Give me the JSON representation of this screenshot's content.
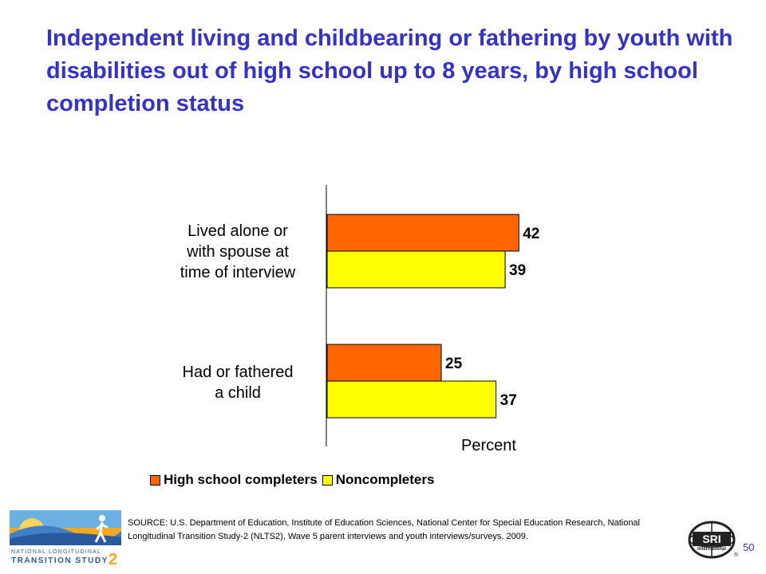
{
  "title": "Independent living and childbearing or fathering by youth with disabilities out of high school up to 8 years, by high school completion status",
  "chart_data": {
    "type": "bar",
    "orientation": "horizontal",
    "categories": [
      "Lived alone or with spouse at time of interview",
      "Had or fathered a child"
    ],
    "category_lines": [
      [
        "Lived alone or",
        "with spouse at",
        "time of interview"
      ],
      [
        "Had or fathered",
        "a child"
      ]
    ],
    "series": [
      {
        "name": "High school completers",
        "values": [
          42,
          25
        ],
        "color": "#ff6600"
      },
      {
        "name": "Noncompleters",
        "values": [
          39,
          37
        ],
        "color": "#ffff00"
      }
    ],
    "xlabel": "Percent",
    "xlim": [
      0,
      100
    ],
    "grid": false,
    "legend_position": "bottom"
  },
  "source": "SOURCE: U.S. Department of Education, Institute of Education Sciences, National Center for Special Education Research, National Longitudinal Transition Study-2 (NLTS2), Wave 5 parent interviews and youth interviews/surveys, 2009.",
  "logos": {
    "nlts_line1": "NATIONAL LONGITUDINAL",
    "nlts_line2": "TRANSITION STUDY",
    "nlts_number": "2",
    "sri": "SRI",
    "sri_sub": "International"
  },
  "page_number": "50"
}
